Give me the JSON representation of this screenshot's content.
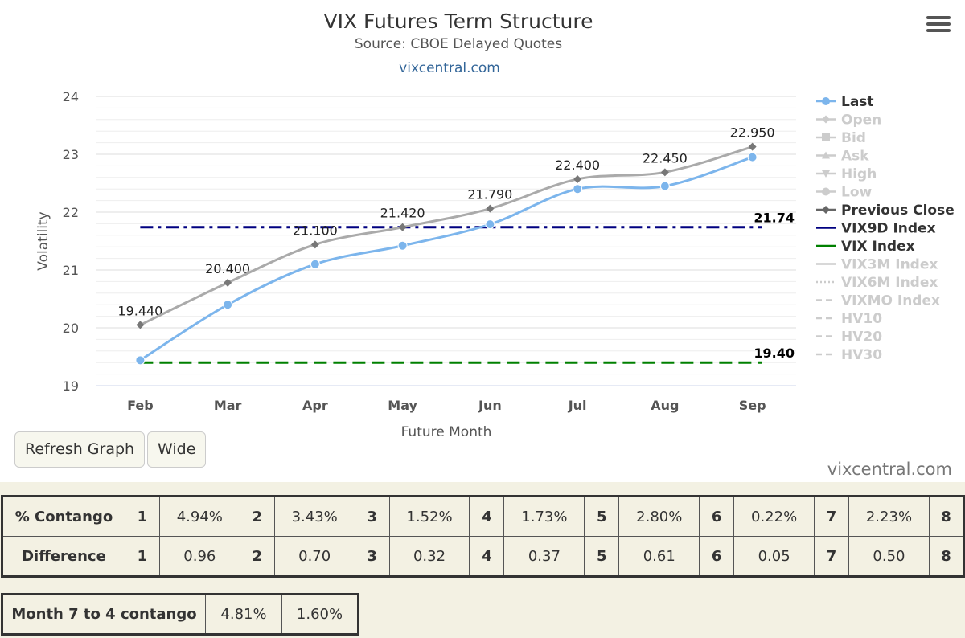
{
  "chart_data": {
    "type": "line",
    "title": "VIX Futures Term Structure",
    "subtitle": "Source: CBOE Delayed Quotes",
    "credit_link": "vixcentral.com",
    "xlabel": "Future Month",
    "ylabel": "Volatility",
    "categories": [
      "Feb",
      "Mar",
      "Apr",
      "May",
      "Jun",
      "Jul",
      "Aug",
      "Sep"
    ],
    "ylim": [
      19,
      24
    ],
    "yticks": [
      "19",
      "20",
      "21",
      "22",
      "23",
      "24"
    ],
    "grid": true,
    "legend_position": "right",
    "series": [
      {
        "name": "Last",
        "values": [
          19.44,
          20.4,
          21.1,
          21.42,
          21.79,
          22.4,
          22.45,
          22.95
        ],
        "labels": [
          "19.440",
          "20.400",
          "21.100",
          "21.420",
          "21.790",
          "22.400",
          "22.450",
          "22.950"
        ],
        "color": "#7cb5ec",
        "style": "solid",
        "marker": "circle",
        "visible": true
      },
      {
        "name": "Previous Close",
        "values": [
          20.05,
          20.78,
          21.44,
          21.74,
          22.06,
          22.57,
          22.69,
          23.13
        ],
        "color": "#aaaaaa",
        "style": "solid",
        "marker": "diamond",
        "visible": true
      },
      {
        "name": "VIX9D Index",
        "value": 21.74,
        "label": "21.74",
        "color": "#000080",
        "style": "dashdot",
        "visible": true
      },
      {
        "name": "VIX Index",
        "value": 19.4,
        "label": "19.40",
        "color": "#008000",
        "style": "dash",
        "visible": true
      }
    ],
    "legend": [
      {
        "name": "Last",
        "symbol": "circle",
        "line": "solid",
        "color": "#7cb5ec",
        "active": true
      },
      {
        "name": "Open",
        "symbol": "diamond",
        "line": "solid",
        "color": "#cccccc",
        "active": false
      },
      {
        "name": "Bid",
        "symbol": "square",
        "line": "solid",
        "color": "#cccccc",
        "active": false
      },
      {
        "name": "Ask",
        "symbol": "triangle",
        "line": "solid",
        "color": "#cccccc",
        "active": false
      },
      {
        "name": "High",
        "symbol": "triangle-down",
        "line": "solid",
        "color": "#cccccc",
        "active": false
      },
      {
        "name": "Low",
        "symbol": "circle",
        "line": "solid",
        "color": "#cccccc",
        "active": false
      },
      {
        "name": "Previous Close",
        "symbol": "diamond",
        "line": "solid",
        "color": "#666666",
        "active": true
      },
      {
        "name": "VIX9D Index",
        "symbol": "none",
        "line": "solid",
        "color": "#000080",
        "active": true
      },
      {
        "name": "VIX Index",
        "symbol": "none",
        "line": "solid",
        "color": "#008000",
        "active": true
      },
      {
        "name": "VIX3M Index",
        "symbol": "none",
        "line": "solid",
        "color": "#cccccc",
        "active": false
      },
      {
        "name": "VIX6M Index",
        "symbol": "none",
        "line": "dot",
        "color": "#cccccc",
        "active": false
      },
      {
        "name": "VIXMO Index",
        "symbol": "none",
        "line": "dashdot",
        "color": "#cccccc",
        "active": false
      },
      {
        "name": "HV10",
        "symbol": "none",
        "line": "dashdot",
        "color": "#cccccc",
        "active": false
      },
      {
        "name": "HV20",
        "symbol": "none",
        "line": "dashdot",
        "color": "#cccccc",
        "active": false
      },
      {
        "name": "HV30",
        "symbol": "none",
        "line": "dashdot",
        "color": "#cccccc",
        "active": false
      }
    ]
  },
  "controls": {
    "refresh_label": "Refresh Graph",
    "wide_label": "Wide",
    "watermark": "vixcentral.com"
  },
  "contango_table": {
    "row1_label": "% Contango",
    "row2_label": "Difference",
    "months": [
      "1",
      "2",
      "3",
      "4",
      "5",
      "6",
      "7",
      "8"
    ],
    "contango": [
      "4.94%",
      "3.43%",
      "1.52%",
      "1.73%",
      "2.80%",
      "0.22%",
      "2.23%"
    ],
    "difference": [
      "0.96",
      "0.70",
      "0.32",
      "0.37",
      "0.61",
      "0.05",
      "0.50"
    ]
  },
  "month7_table": {
    "label": "Month 7 to 4 contango",
    "v1": "4.81%",
    "v2": "1.60%"
  }
}
